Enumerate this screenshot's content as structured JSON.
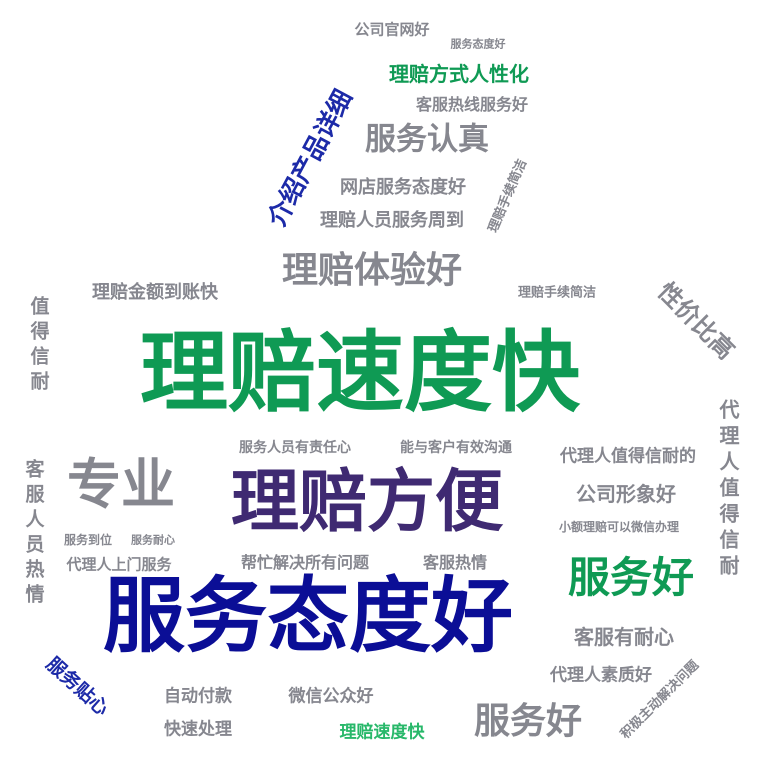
{
  "palette": {
    "green": "#0f9a54",
    "light_green": "#28b86a",
    "navy": "#0b0e96",
    "blue": "#1c2aa8",
    "purple": "#3f2a72",
    "gray": "#86878f"
  },
  "words": [
    {
      "text": "理赔速度快",
      "weight": 100,
      "color": "green"
    },
    {
      "text": "服务态度好",
      "weight": 92,
      "color": "navy"
    },
    {
      "text": "理赔方便",
      "weight": 80,
      "color": "purple"
    },
    {
      "text": "专业",
      "weight": 52,
      "color": "gray"
    },
    {
      "text": "服务好",
      "weight": 42,
      "color": "green"
    },
    {
      "text": "理赔体验好",
      "weight": 36,
      "color": "gray"
    },
    {
      "text": "服务好",
      "weight": 35,
      "color": "gray"
    },
    {
      "text": "服务认真",
      "weight": 32,
      "color": "gray"
    },
    {
      "text": "介绍产品详细",
      "weight": 28,
      "color": "blue"
    },
    {
      "text": "性价比高",
      "weight": 26,
      "color": "gray"
    },
    {
      "text": "代理人值得信耐",
      "weight": 22,
      "color": "gray"
    },
    {
      "text": "客服有耐心",
      "weight": 21,
      "color": "gray"
    },
    {
      "text": "公司形象好",
      "weight": 20,
      "color": "gray"
    },
    {
      "text": "理赔方式人性化",
      "weight": 20,
      "color": "green"
    },
    {
      "text": "服务贴心",
      "weight": 19,
      "color": "blue"
    },
    {
      "text": "值得信耐",
      "weight": 19,
      "color": "gray"
    },
    {
      "text": "客服人员热情",
      "weight": 19,
      "color": "gray"
    },
    {
      "text": "网店服务态度好",
      "weight": 18,
      "color": "gray"
    },
    {
      "text": "理赔人员服务周到",
      "weight": 18,
      "color": "gray"
    },
    {
      "text": "理赔金额到账快",
      "weight": 18,
      "color": "gray"
    },
    {
      "text": "代理人值得信耐的",
      "weight": 17,
      "color": "gray"
    },
    {
      "text": "代理人素质好",
      "weight": 17,
      "color": "gray"
    },
    {
      "text": "自动付款",
      "weight": 17,
      "color": "gray"
    },
    {
      "text": "快速处理",
      "weight": 17,
      "color": "gray"
    },
    {
      "text": "微信公众好",
      "weight": 17,
      "color": "gray"
    },
    {
      "text": "理赔速度快",
      "weight": 17,
      "color": "light_green"
    },
    {
      "text": "客服热线服务好",
      "weight": 16,
      "color": "gray"
    },
    {
      "text": "帮忙解决所有问题",
      "weight": 16,
      "color": "gray"
    },
    {
      "text": "客服热情",
      "weight": 16,
      "color": "gray"
    },
    {
      "text": "代理人上门服务",
      "weight": 15,
      "color": "gray"
    },
    {
      "text": "公司官网好",
      "weight": 14,
      "color": "gray"
    },
    {
      "text": "服务人员有责任心",
      "weight": 14,
      "color": "gray"
    },
    {
      "text": "能与客户有效沟通",
      "weight": 14,
      "color": "gray"
    },
    {
      "text": "理赔手续简洁",
      "weight": 13,
      "color": "gray"
    },
    {
      "text": "理赔手续简洁",
      "weight": 13,
      "color": "gray"
    },
    {
      "text": "积极主动解决问题",
      "weight": 13,
      "color": "gray"
    },
    {
      "text": "小额理赔可以微信办理",
      "weight": 12,
      "color": "gray"
    },
    {
      "text": "服务到位",
      "weight": 12,
      "color": "gray"
    },
    {
      "text": "服务耐心",
      "weight": 11,
      "color": "gray"
    },
    {
      "text": "服务态度好",
      "weight": 11,
      "color": "gray"
    }
  ]
}
